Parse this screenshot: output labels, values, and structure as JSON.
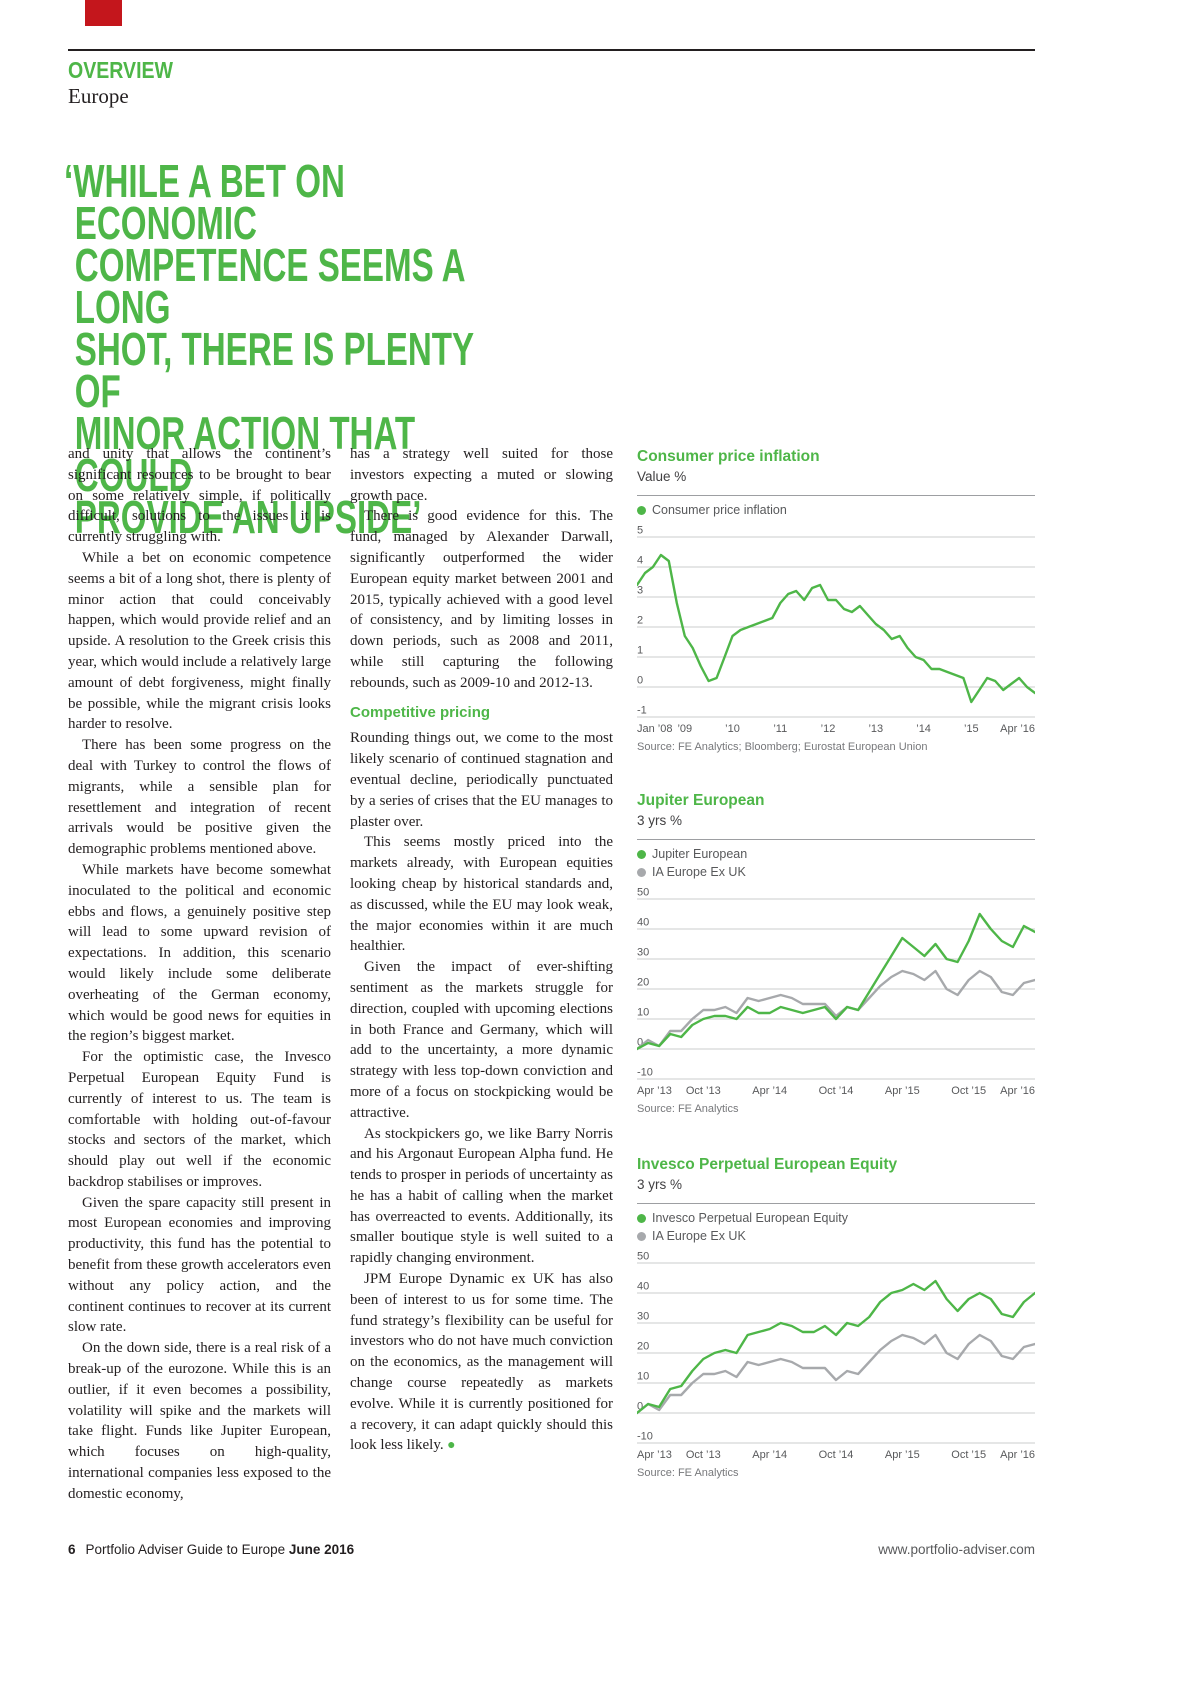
{
  "page": {
    "section_label": "OVERVIEW",
    "section_title": "Europe",
    "pull_quote_lines": [
      "‘WHILE A BET ON ECONOMIC",
      "COMPETENCE SEEMS A LONG",
      "SHOT, THERE IS PLENTY OF",
      "MINOR ACTION THAT COULD",
      "PROVIDE AN UPSIDE’"
    ],
    "footer": {
      "page_number": "6",
      "publication": "Portfolio Adviser Guide to Europe ",
      "date": "June 2016",
      "url": "www.portfolio-adviser.com"
    }
  },
  "colors": {
    "accent_green": "#4eb648",
    "series_gray": "#a7a9ac",
    "text_dark": "#231f20",
    "red_tab": "#c4161c"
  },
  "article": {
    "column1": [
      "and unity that allows the continent’s significant resources to be brought to bear on some relatively simple, if politically difficult, solutions to the issues it is currently struggling with.",
      "While a bet on economic competence seems a bit of a long shot, there is plenty of minor action that could conceivably happen, which would provide relief and an upside. A resolution to the Greek crisis this year, which would include a relatively large amount of debt forgiveness, might finally be possible, while the migrant crisis looks harder to resolve.",
      "There has been some progress on the deal with Turkey to control the flows of migrants, while a sensible plan for resettlement and integration of recent arrivals would be positive given the demographic problems mentioned above.",
      "While markets have become somewhat inoculated to the political and economic ebbs and flows, a genuinely positive step will lead to some upward revision of expectations. In addition, this scenario would likely include some deliberate overheating of the German economy, which would be good news for equities in the region’s biggest market.",
      "For the optimistic case, the Invesco Perpetual European Equity Fund is currently of interest to us. The team is comfortable with holding out-of-favour stocks and sectors of the market, which should play out well if the economic backdrop stabilises or improves.",
      "Given the spare capacity still present in most European economies and improving productivity, this fund has the potential to benefit from these growth accelerators even without any policy action, and the continent continues to recover at its current slow rate.",
      "On the down side, there is a real risk of a break-up of the eurozone. While this is an outlier, if it even becomes a possibility, volatility will spike and the markets will take flight. Funds like Jupiter European, which focuses on high-quality, international companies less exposed to the domestic economy,"
    ],
    "column2_before": [
      "has a strategy well suited for those investors expecting a muted or slowing growth pace.",
      "There is good evidence for this. The fund, managed by Alexander Darwall, significantly outperformed the wider European equity market between 2001 and 2015, typically achieved with a good level of consistency, and by limiting losses in down periods, such as 2008 and 2011, while still capturing the following rebounds, such as 2009-10 and 2012-13."
    ],
    "subhead": "Competitive pricing",
    "column2_after": [
      "Rounding things out, we come to the most likely scenario of continued stagnation and eventual decline, periodically punctuated by a series of crises that the EU manages to plaster over.",
      "This seems mostly priced into the markets already, with European equities looking cheap by historical standards and, as discussed, while the EU may look weak, the major economies within it are much healthier.",
      "Given the impact of ever-shifting sentiment as the markets struggle for direction, coupled with upcoming elections in both France and Germany, which will add to the uncertainty, a more dynamic strategy with less top-down conviction and more of a focus on stockpicking would be attractive.",
      "As stockpickers go, we like Barry Norris and his Argonaut European Alpha fund. He tends to prosper in periods of uncertainty as he has a habit of calling when the market has overreacted to events. Additionally, its smaller boutique style is well suited to a rapidly changing environment.",
      "JPM Europe Dynamic ex UK has also been of interest to us for some time. The fund strategy’s flexibility can be useful for investors who do not have much conviction on the economics, as the management will change course repeatedly as markets evolve. While it is currently positioned for a recovery, it can adapt quickly should this look less likely."
    ],
    "end_mark": "●"
  },
  "chart_data": [
    {
      "type": "line",
      "title": "Consumer price inflation",
      "subtitle": "Value %",
      "source": "Source:  FE Analytics; Bloomberg; Eurostat European Union",
      "ylim": [
        -1,
        5
      ],
      "yticks": [
        5,
        4,
        3,
        2,
        1,
        0,
        -1
      ],
      "xticks": [
        {
          "pos": 0,
          "label": "Jan ’08"
        },
        {
          "pos": 0.12,
          "label": "’09"
        },
        {
          "pos": 0.24,
          "label": "’10"
        },
        {
          "pos": 0.36,
          "label": "’11"
        },
        {
          "pos": 0.48,
          "label": "’12"
        },
        {
          "pos": 0.6,
          "label": "’13"
        },
        {
          "pos": 0.72,
          "label": "’14"
        },
        {
          "pos": 0.84,
          "label": "’15"
        },
        {
          "pos": 1,
          "label": "Apr ’16"
        }
      ],
      "series": [
        {
          "name": "Consumer price inflation",
          "color": "#4eb648",
          "values": [
            3.4,
            3.8,
            4.0,
            4.4,
            4.2,
            2.8,
            1.7,
            1.3,
            0.7,
            0.2,
            0.3,
            1.0,
            1.7,
            1.9,
            2.0,
            2.1,
            2.2,
            2.3,
            2.8,
            3.1,
            3.2,
            2.9,
            3.3,
            3.4,
            2.9,
            2.9,
            2.6,
            2.5,
            2.7,
            2.4,
            2.1,
            1.9,
            1.6,
            1.7,
            1.3,
            1.0,
            0.9,
            0.6,
            0.6,
            0.5,
            0.4,
            0.3,
            -0.5,
            -0.1,
            0.3,
            0.2,
            -0.1,
            0.1,
            0.3,
            0.0,
            -0.2
          ]
        }
      ]
    },
    {
      "type": "line",
      "title": "Jupiter European",
      "subtitle": "3 yrs %",
      "source": "Source: FE Analytics",
      "ylim": [
        -10,
        50
      ],
      "yticks": [
        50,
        40,
        30,
        20,
        10,
        0,
        -10
      ],
      "xticks": [
        {
          "pos": 0,
          "label": "Apr ’13"
        },
        {
          "pos": 0.1667,
          "label": "Oct ’13"
        },
        {
          "pos": 0.3333,
          "label": "Apr ’14"
        },
        {
          "pos": 0.5,
          "label": "Oct ’14"
        },
        {
          "pos": 0.6667,
          "label": "Apr ’15"
        },
        {
          "pos": 0.8333,
          "label": "Oct ’15"
        },
        {
          "pos": 1,
          "label": "Apr ’16"
        }
      ],
      "series": [
        {
          "name": "Jupiter European",
          "color": "#4eb648",
          "values": [
            0,
            2,
            1,
            5,
            4,
            8,
            10,
            11,
            11,
            10,
            14,
            12,
            12,
            14,
            13,
            12,
            13,
            14,
            10,
            14,
            13,
            19,
            25,
            31,
            37,
            34,
            31,
            35,
            30,
            29,
            36,
            45,
            40,
            36,
            34,
            41,
            39
          ]
        },
        {
          "name": "IA Europe Ex UK",
          "color": "#a7a9ac",
          "values": [
            0,
            3,
            1,
            6,
            6,
            10,
            13,
            13,
            14,
            12,
            17,
            16,
            17,
            18,
            17,
            15,
            15,
            15,
            11,
            14,
            13,
            17,
            21,
            24,
            26,
            25,
            23,
            26,
            20,
            18,
            23,
            26,
            24,
            19,
            18,
            22,
            23
          ]
        }
      ]
    },
    {
      "type": "line",
      "title": "Invesco Perpetual European Equity",
      "subtitle": "3 yrs %",
      "source": "Source: FE Analytics",
      "ylim": [
        -10,
        50
      ],
      "yticks": [
        50,
        40,
        30,
        20,
        10,
        0,
        -10
      ],
      "xticks": [
        {
          "pos": 0,
          "label": "Apr ’13"
        },
        {
          "pos": 0.1667,
          "label": "Oct ’13"
        },
        {
          "pos": 0.3333,
          "label": "Apr ’14"
        },
        {
          "pos": 0.5,
          "label": "Oct ’14"
        },
        {
          "pos": 0.6667,
          "label": "Apr ’15"
        },
        {
          "pos": 0.8333,
          "label": "Oct ’15"
        },
        {
          "pos": 1,
          "label": "Apr ’16"
        }
      ],
      "series": [
        {
          "name": "Invesco Perpetual European Equity",
          "color": "#4eb648",
          "values": [
            0,
            3,
            2,
            8,
            9,
            14,
            18,
            20,
            21,
            20,
            26,
            27,
            28,
            30,
            29,
            27,
            27,
            29,
            26,
            30,
            29,
            32,
            37,
            40,
            41,
            43,
            41,
            44,
            38,
            34,
            38,
            40,
            38,
            33,
            32,
            37,
            40
          ]
        },
        {
          "name": "IA Europe Ex UK",
          "color": "#a7a9ac",
          "values": [
            0,
            3,
            1,
            6,
            6,
            10,
            13,
            13,
            14,
            12,
            17,
            16,
            17,
            18,
            17,
            15,
            15,
            15,
            11,
            14,
            13,
            17,
            21,
            24,
            26,
            25,
            23,
            26,
            20,
            18,
            23,
            26,
            24,
            19,
            18,
            22,
            23
          ]
        }
      ]
    }
  ]
}
